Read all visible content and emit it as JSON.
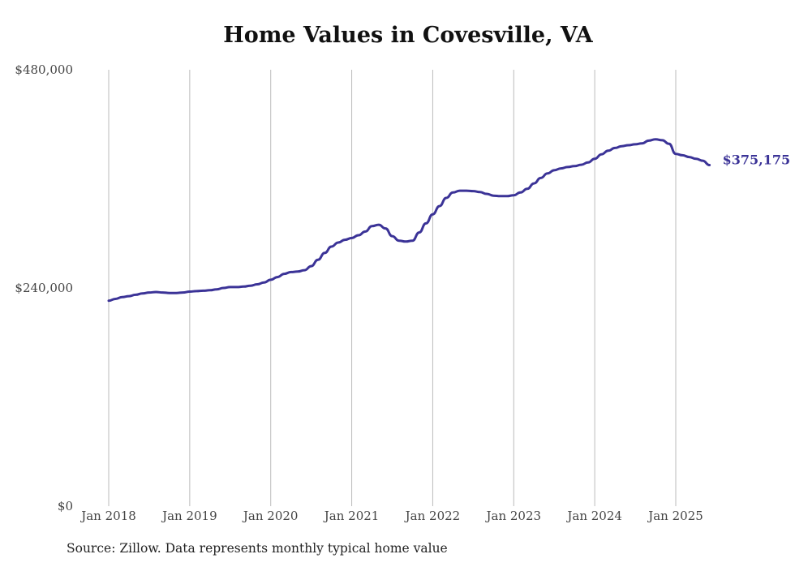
{
  "chart_data": {
    "type": "line",
    "title": "Home Values in Covesville, VA",
    "source": "Source: Zillow. Data represents monthly typical home value",
    "xlabel": "",
    "ylabel": "",
    "ylim": [
      0,
      480000
    ],
    "y_ticks": [
      0,
      240000,
      480000
    ],
    "y_tick_labels": [
      "$0",
      "$240,000",
      "$480,000"
    ],
    "x_ticks": [
      "2018-01",
      "2019-01",
      "2020-01",
      "2021-01",
      "2022-01",
      "2023-01",
      "2024-01",
      "2025-01"
    ],
    "x_tick_labels": [
      "Jan 2018",
      "Jan 2019",
      "Jan 2020",
      "Jan 2021",
      "Jan 2022",
      "Jan 2023",
      "Jan 2024",
      "Jan 2025"
    ],
    "grid": "vertical",
    "line_color": "#3b3397",
    "end_label": "$375,175",
    "series": [
      {
        "x": [
          "2018-01",
          "2018-02",
          "2018-03",
          "2018-04",
          "2018-05",
          "2018-06",
          "2018-07",
          "2018-08",
          "2018-09",
          "2018-10",
          "2018-11",
          "2018-12",
          "2019-01",
          "2019-02",
          "2019-03",
          "2019-04",
          "2019-05",
          "2019-06",
          "2019-07",
          "2019-08",
          "2019-09",
          "2019-10",
          "2019-11",
          "2019-12",
          "2020-01",
          "2020-02",
          "2020-03",
          "2020-04",
          "2020-05",
          "2020-06",
          "2020-07",
          "2020-08",
          "2020-09",
          "2020-10",
          "2020-11",
          "2020-12",
          "2021-01",
          "2021-02",
          "2021-03",
          "2021-04",
          "2021-05",
          "2021-06",
          "2021-07",
          "2021-08",
          "2021-09",
          "2021-10",
          "2021-11",
          "2021-12",
          "2022-01",
          "2022-02",
          "2022-03",
          "2022-04",
          "2022-05",
          "2022-06",
          "2022-07",
          "2022-08",
          "2022-09",
          "2022-10",
          "2022-11",
          "2022-12",
          "2023-01",
          "2023-02",
          "2023-03",
          "2023-04",
          "2023-05",
          "2023-06",
          "2023-07",
          "2023-08",
          "2023-09",
          "2023-10",
          "2023-11",
          "2023-12",
          "2024-01",
          "2024-02",
          "2024-03",
          "2024-04",
          "2024-05",
          "2024-06",
          "2024-07",
          "2024-08",
          "2024-09",
          "2024-10",
          "2024-11",
          "2024-12",
          "2025-01",
          "2025-02",
          "2025-03",
          "2025-04",
          "2025-05",
          "2025-06"
        ],
        "values": [
          226000,
          228000,
          230000,
          231000,
          232500,
          234000,
          235000,
          235500,
          235000,
          234500,
          234500,
          235000,
          236000,
          236500,
          237000,
          237500,
          238500,
          240000,
          241000,
          241000,
          241500,
          242500,
          244000,
          246000,
          249000,
          252000,
          255500,
          257500,
          258000,
          259500,
          264000,
          271000,
          278500,
          285500,
          290000,
          293000,
          295000,
          298000,
          302000,
          308000,
          309500,
          305500,
          297000,
          292000,
          291000,
          292000,
          301000,
          311000,
          321000,
          330000,
          339000,
          345000,
          347000,
          347000,
          346500,
          345500,
          343500,
          341500,
          341000,
          341000,
          342000,
          345000,
          349000,
          355000,
          361000,
          366000,
          369500,
          371500,
          373000,
          374000,
          375500,
          378000,
          382000,
          387000,
          391000,
          394000,
          396000,
          397000,
          398000,
          399000,
          402000,
          403500,
          402500,
          398500,
          387500,
          386000,
          384000,
          382000,
          380000,
          375175
        ]
      }
    ]
  }
}
